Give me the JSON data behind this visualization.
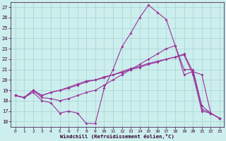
{
  "xlabel": "Windchill (Refroidissement éolien,°C)",
  "bg_color": "#cceeed",
  "grid_color": "#99cccc",
  "line_color": "#993399",
  "xlim": [
    -0.5,
    23.5
  ],
  "ylim": [
    15.5,
    27.5
  ],
  "xticks": [
    0,
    1,
    2,
    3,
    4,
    5,
    6,
    7,
    8,
    9,
    10,
    11,
    12,
    13,
    14,
    15,
    16,
    17,
    18,
    19,
    20,
    21,
    22,
    23
  ],
  "yticks": [
    16,
    17,
    18,
    19,
    20,
    21,
    22,
    23,
    24,
    25,
    26,
    27
  ],
  "line1": {
    "x": [
      0,
      1,
      2,
      3,
      4,
      5,
      6,
      7,
      8,
      9,
      10,
      11,
      12,
      13,
      14,
      15,
      16,
      17,
      18,
      19,
      20,
      21,
      22,
      23
    ],
    "y": [
      18.5,
      18.3,
      18.8,
      18.0,
      17.8,
      16.8,
      17.0,
      16.8,
      15.8,
      15.8,
      19.2,
      21.0,
      23.2,
      24.5,
      26.0,
      27.2,
      26.5,
      25.8,
      23.3,
      21.0,
      21.0,
      17.5,
      16.8,
      16.3
    ]
  },
  "line2": {
    "x": [
      0,
      1,
      2,
      3,
      4,
      5,
      6,
      7,
      8,
      9,
      10,
      11,
      12,
      13,
      14,
      15,
      16,
      17,
      18,
      19,
      20,
      21,
      22,
      23
    ],
    "y": [
      18.5,
      18.3,
      19.0,
      18.3,
      18.2,
      18.0,
      18.2,
      18.5,
      18.8,
      19.0,
      19.5,
      20.0,
      20.5,
      21.0,
      21.5,
      22.0,
      22.5,
      23.0,
      23.3,
      20.5,
      20.8,
      17.2,
      16.8,
      16.3
    ]
  },
  "line3": {
    "x": [
      0,
      1,
      2,
      3,
      4,
      5,
      6,
      7,
      8,
      9,
      10,
      11,
      12,
      13,
      14,
      15,
      16,
      17,
      18,
      19,
      20,
      21,
      22,
      23
    ],
    "y": [
      18.5,
      18.3,
      19.0,
      18.5,
      18.8,
      19.0,
      19.2,
      19.5,
      19.8,
      20.0,
      20.2,
      20.5,
      20.7,
      21.0,
      21.2,
      21.5,
      21.7,
      22.0,
      22.2,
      22.5,
      20.8,
      20.5,
      16.8,
      16.3
    ]
  },
  "line4": {
    "x": [
      0,
      1,
      2,
      3,
      4,
      5,
      6,
      7,
      8,
      9,
      10,
      11,
      12,
      13,
      14,
      15,
      16,
      17,
      18,
      19,
      20,
      21,
      22,
      23
    ],
    "y": [
      18.5,
      18.3,
      19.0,
      18.5,
      18.8,
      19.0,
      19.3,
      19.6,
      19.9,
      20.0,
      20.3,
      20.5,
      20.8,
      21.1,
      21.3,
      21.6,
      21.8,
      22.0,
      22.2,
      22.4,
      20.5,
      17.0,
      16.8,
      16.3
    ]
  }
}
